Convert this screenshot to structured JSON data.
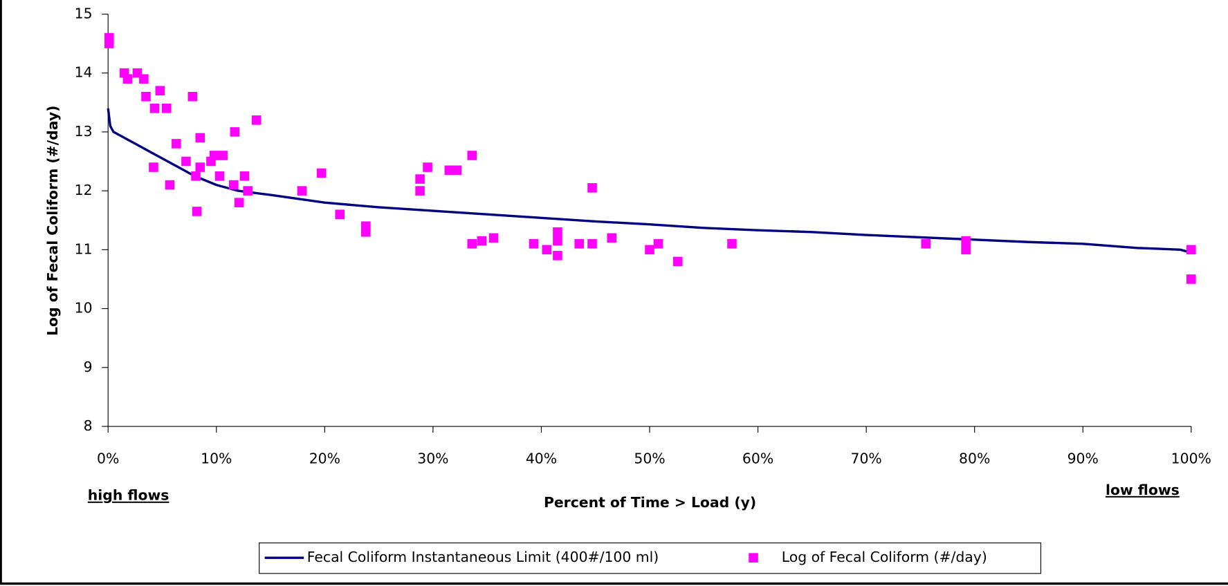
{
  "chart_data": {
    "type": "scatter",
    "y_label": "Log of Fecal Coliform (#/day)",
    "x_label": "Percent of Time > Load (y)",
    "annotations": [
      "high flows",
      "low flows"
    ],
    "xlim": [
      0,
      100
    ],
    "ylim": [
      8,
      15
    ],
    "xticks": [
      {
        "value": 0,
        "label": "0%"
      },
      {
        "value": 10,
        "label": "10%"
      },
      {
        "value": 20,
        "label": "20%"
      },
      {
        "value": 30,
        "label": "30%"
      },
      {
        "value": 40,
        "label": "40%"
      },
      {
        "value": 50,
        "label": "50%"
      },
      {
        "value": 60,
        "label": "60%"
      },
      {
        "value": 70,
        "label": "70%"
      },
      {
        "value": 80,
        "label": "80%"
      },
      {
        "value": 90,
        "label": "90%"
      },
      {
        "value": 100,
        "label": "100%"
      }
    ],
    "yticks": [
      8,
      9,
      10,
      11,
      12,
      13,
      14,
      15
    ],
    "series": [
      {
        "name": "Fecal Coliform Instantaneous Limit (400#/100 ml)",
        "type": "line",
        "color": "#000080",
        "x": [
          0,
          0.2,
          0.5,
          1,
          2,
          4,
          6,
          8,
          10,
          12,
          15,
          20,
          25,
          30,
          35,
          40,
          45,
          50,
          55,
          60,
          65,
          70,
          75,
          80,
          85,
          90,
          95,
          99,
          100
        ],
        "values": [
          13.4,
          13.1,
          13.0,
          12.95,
          12.85,
          12.65,
          12.45,
          12.25,
          12.1,
          12.0,
          11.93,
          11.8,
          11.72,
          11.66,
          11.6,
          11.54,
          11.48,
          11.43,
          11.37,
          11.33,
          11.3,
          11.25,
          11.21,
          11.17,
          11.13,
          11.1,
          11.03,
          11.0,
          10.95
        ]
      },
      {
        "name": "Log of Fecal Coliform (#/day)",
        "type": "scatter",
        "color": "#ff00ff",
        "x": [
          0.1,
          0.1,
          1.5,
          1.8,
          2.7,
          3.3,
          3.5,
          4.8,
          4.3,
          5.4,
          7.8,
          6.3,
          4.2,
          5.7,
          7.2,
          8.5,
          8.1,
          8.5,
          9.5,
          9.8,
          10.6,
          10.3,
          8.2,
          11.6,
          11.7,
          12.6,
          12.9,
          12.1,
          13.7,
          17.9,
          19.7,
          21.4,
          23.8,
          23.8,
          28.8,
          28.8,
          29.5,
          31.5,
          32.2,
          33.6,
          33.6,
          34.5,
          35.6,
          39.3,
          40.5,
          41.5,
          41.5,
          41.5,
          43.5,
          44.7,
          44.7,
          46.5,
          50,
          50.8,
          52.6,
          57.6,
          75.5,
          79.2,
          79.2,
          100,
          100
        ],
        "values": [
          14.6,
          14.5,
          14.0,
          13.9,
          14.0,
          13.9,
          13.6,
          13.7,
          13.4,
          13.4,
          13.6,
          12.8,
          12.4,
          12.1,
          12.5,
          12.9,
          12.25,
          12.4,
          12.5,
          12.6,
          12.6,
          12.25,
          11.65,
          12.1,
          13.0,
          12.25,
          12.0,
          11.8,
          13.2,
          12.0,
          12.3,
          11.6,
          11.4,
          11.3,
          12.2,
          12.0,
          12.4,
          12.35,
          12.35,
          12.6,
          11.1,
          11.15,
          11.2,
          11.1,
          11.0,
          11.3,
          11.15,
          10.9,
          11.1,
          11.1,
          12.05,
          11.2,
          11.0,
          11.1,
          10.8,
          11.1,
          11.1,
          11.15,
          11.0,
          11.0,
          10.5
        ]
      }
    ]
  }
}
